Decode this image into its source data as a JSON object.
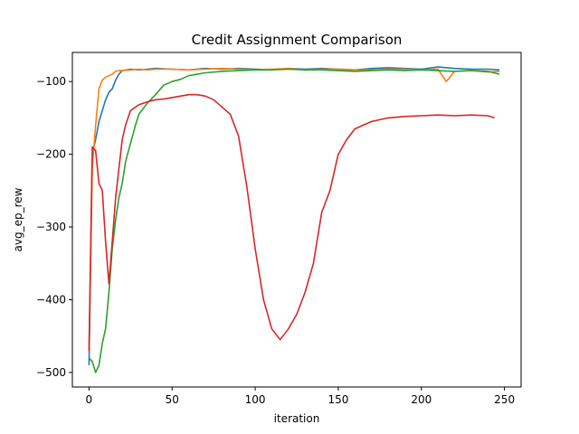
{
  "chart_data": {
    "type": "line",
    "title": "Credit Assignment Comparison",
    "xlabel": "iteration",
    "ylabel": "avg_ep_rew",
    "xlim": [
      -10,
      260
    ],
    "ylim": [
      -520,
      -60
    ],
    "xticks": [
      0,
      50,
      100,
      150,
      200,
      250
    ],
    "yticks": [
      -500,
      -400,
      -300,
      -200,
      -100
    ],
    "xtick_labels": [
      "0",
      "50",
      "100",
      "150",
      "200",
      "250"
    ],
    "ytick_labels": [
      "−500",
      "−400",
      "−300",
      "−200",
      "−100"
    ],
    "grid": false,
    "legend": false,
    "series": [
      {
        "name": "blue",
        "color": "#1f77b4",
        "x": [
          0,
          2,
          4,
          6,
          8,
          10,
          12,
          14,
          16,
          18,
          20,
          25,
          30,
          35,
          40,
          50,
          60,
          70,
          80,
          90,
          100,
          110,
          120,
          130,
          140,
          150,
          160,
          170,
          180,
          190,
          200,
          210,
          220,
          230,
          240,
          247
        ],
        "values": [
          -490,
          -200,
          -180,
          -155,
          -140,
          -125,
          -115,
          -110,
          -98,
          -90,
          -85,
          -83,
          -84,
          -83,
          -82,
          -83,
          -84,
          -82,
          -83,
          -82,
          -83,
          -84,
          -82,
          -83,
          -82,
          -83,
          -84,
          -82,
          -81,
          -82,
          -83,
          -80,
          -82,
          -83,
          -83,
          -84
        ]
      },
      {
        "name": "orange",
        "color": "#ff7f0e",
        "x": [
          0,
          2,
          4,
          6,
          8,
          10,
          12,
          14,
          16,
          18,
          20,
          25,
          30,
          35,
          40,
          50,
          60,
          70,
          80,
          90,
          100,
          110,
          120,
          130,
          140,
          150,
          160,
          170,
          180,
          190,
          200,
          210,
          215,
          220,
          230,
          240,
          247
        ],
        "values": [
          -470,
          -220,
          -160,
          -110,
          -98,
          -94,
          -92,
          -90,
          -86,
          -85,
          -85,
          -84,
          -83,
          -84,
          -83,
          -83,
          -84,
          -83,
          -82,
          -83,
          -84,
          -83,
          -82,
          -84,
          -83,
          -83,
          -84,
          -84,
          -83,
          -83,
          -84,
          -83,
          -100,
          -86,
          -85,
          -87,
          -86
        ]
      },
      {
        "name": "green",
        "color": "#2ca02c",
        "x": [
          0,
          2,
          4,
          6,
          8,
          10,
          12,
          14,
          16,
          18,
          20,
          22,
          25,
          28,
          30,
          35,
          40,
          45,
          50,
          55,
          60,
          70,
          80,
          90,
          100,
          110,
          120,
          130,
          140,
          150,
          160,
          170,
          180,
          190,
          200,
          210,
          220,
          230,
          240,
          247
        ],
        "values": [
          -480,
          -485,
          -500,
          -490,
          -460,
          -440,
          -390,
          -330,
          -290,
          -260,
          -240,
          -210,
          -185,
          -160,
          -145,
          -130,
          -118,
          -105,
          -100,
          -97,
          -92,
          -88,
          -86,
          -85,
          -84,
          -84,
          -83,
          -84,
          -84,
          -85,
          -86,
          -85,
          -84,
          -85,
          -84,
          -85,
          -86,
          -85,
          -86,
          -90
        ]
      },
      {
        "name": "red",
        "color": "#d62728",
        "x": [
          0,
          2,
          4,
          6,
          8,
          10,
          12,
          14,
          16,
          18,
          20,
          22,
          25,
          30,
          35,
          40,
          45,
          50,
          55,
          60,
          65,
          70,
          75,
          80,
          85,
          90,
          95,
          100,
          105,
          110,
          115,
          120,
          125,
          130,
          135,
          140,
          145,
          150,
          155,
          160,
          170,
          180,
          190,
          200,
          210,
          220,
          230,
          240,
          244
        ],
        "values": [
          -470,
          -190,
          -195,
          -240,
          -250,
          -320,
          -378,
          -320,
          -260,
          -220,
          -180,
          -160,
          -140,
          -132,
          -128,
          -125,
          -124,
          -122,
          -120,
          -118,
          -118,
          -120,
          -125,
          -135,
          -145,
          -175,
          -245,
          -330,
          -400,
          -440,
          -455,
          -440,
          -420,
          -390,
          -350,
          -280,
          -250,
          -200,
          -180,
          -165,
          -155,
          -150,
          -148,
          -147,
          -146,
          -147,
          -146,
          -147,
          -150
        ]
      }
    ]
  }
}
